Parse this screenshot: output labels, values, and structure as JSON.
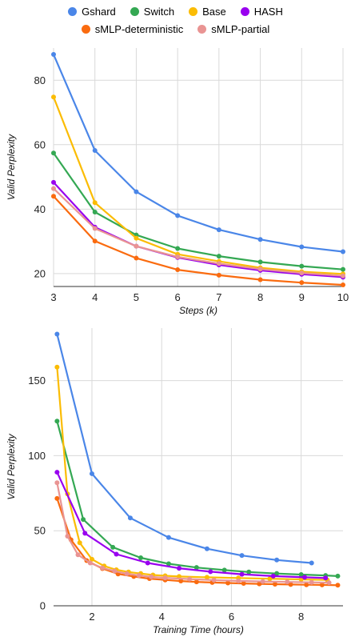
{
  "colors": {
    "Gshard": "#4a86e8",
    "Switch": "#34a853",
    "Base": "#fbbc04",
    "HASH": "#9900ef",
    "sMLP-deterministic": "#fa6b0f",
    "sMLP-partial": "#e99493"
  },
  "legend": {
    "row1": [
      "Gshard",
      "Switch",
      "Base",
      "HASH"
    ],
    "row2": [
      "sMLP-deterministic",
      "sMLP-partial"
    ]
  },
  "chart_data": [
    {
      "type": "line",
      "xlabel": "Steps (k)",
      "ylabel": "Valid Perplexity",
      "xlim": [
        3,
        10
      ],
      "ylim": [
        16,
        90
      ],
      "xticks": [
        3,
        4,
        5,
        6,
        7,
        8,
        9,
        10
      ],
      "yticks": [
        20,
        40,
        60,
        80
      ],
      "grid": true,
      "legend_position": "top",
      "series": [
        {
          "name": "Gshard",
          "x": [
            3,
            4,
            5,
            6,
            7,
            8,
            9,
            10
          ],
          "values": [
            88,
            58.2,
            45.4,
            38,
            33.6,
            30.6,
            28.3,
            26.8
          ]
        },
        {
          "name": "Switch",
          "x": [
            3,
            4,
            5,
            6,
            7,
            8,
            9,
            10
          ],
          "values": [
            57.4,
            39.1,
            32,
            27.8,
            25.4,
            23.6,
            22.3,
            21.3
          ]
        },
        {
          "name": "Base",
          "x": [
            3,
            4,
            5,
            6,
            7,
            8,
            9,
            10
          ],
          "values": [
            74.8,
            42,
            31,
            26,
            23.8,
            21.8,
            20.6,
            19.9
          ]
        },
        {
          "name": "HASH",
          "x": [
            3,
            4,
            5,
            6,
            7,
            8,
            9,
            10
          ],
          "values": [
            48.3,
            34.4,
            28.5,
            25,
            22.7,
            21,
            19.8,
            18.9
          ]
        },
        {
          "name": "sMLP-deterministic",
          "x": [
            3,
            4,
            5,
            6,
            7,
            8,
            9,
            10
          ],
          "values": [
            44,
            30.1,
            24.8,
            21.2,
            19.5,
            18.1,
            17.2,
            16.5
          ]
        },
        {
          "name": "sMLP-partial",
          "x": [
            3,
            4,
            5,
            6,
            7,
            8,
            9,
            10
          ],
          "values": [
            46.4,
            34,
            28.5,
            25.2,
            23.1,
            21.4,
            20.2,
            19.3
          ]
        }
      ]
    },
    {
      "type": "line",
      "xlabel": "Training Time (hours)",
      "ylabel": "Valid Perplexity",
      "xlim": [
        0.9,
        9.2
      ],
      "ylim": [
        0,
        185
      ],
      "xticks": [
        2,
        4,
        6,
        8
      ],
      "yticks": [
        0,
        50,
        100,
        150
      ],
      "grid": true,
      "legend_position": "top",
      "series": [
        {
          "name": "Gshard",
          "x": [
            1.0,
            2.0,
            3.1,
            4.2,
            5.3,
            6.3,
            7.3,
            8.3
          ],
          "values": [
            181,
            88,
            58.5,
            45.5,
            38,
            33.5,
            30.5,
            28.5
          ]
        },
        {
          "name": "Switch",
          "x": [
            1.0,
            1.75,
            2.6,
            3.4,
            4.2,
            5.0,
            5.8,
            6.5,
            7.3,
            8.0,
            8.7,
            9.05
          ],
          "values": [
            123,
            57.5,
            39,
            32,
            28,
            25.5,
            23.8,
            22.5,
            21.5,
            20.8,
            20.2,
            19.8
          ]
        },
        {
          "name": "Base",
          "x": [
            1.0,
            1.3,
            1.65,
            2.0,
            2.35,
            2.7,
            3.05,
            3.4,
            3.75,
            4.1,
            4.5,
            5.3,
            6.2,
            7.1,
            8.0,
            8.75
          ],
          "values": [
            159,
            74.5,
            42,
            31,
            26.5,
            24,
            22.5,
            21.5,
            20.5,
            20,
            19.5,
            19,
            18.5,
            18,
            17.6,
            17.2
          ]
        },
        {
          "name": "HASH",
          "x": [
            1.0,
            1.8,
            2.7,
            3.6,
            4.5,
            5.4,
            6.3,
            7.2,
            8.1,
            8.7
          ],
          "values": [
            89,
            48.3,
            34.4,
            28.5,
            25,
            22.7,
            21,
            19.8,
            19,
            18.5
          ]
        },
        {
          "name": "sMLP-deterministic",
          "x": [
            1.0,
            1.4,
            1.85,
            2.3,
            2.75,
            3.2,
            3.65,
            4.1,
            4.55,
            5.0,
            5.45,
            5.9,
            6.35,
            6.8,
            7.25,
            7.7,
            8.15,
            8.6,
            9.05
          ],
          "values": [
            71.5,
            44,
            30.1,
            24.8,
            21.2,
            19.5,
            18.1,
            17.2,
            16.5,
            15.9,
            15.5,
            15.2,
            14.9,
            14.6,
            14.4,
            14.2,
            14,
            13.9,
            13.7
          ]
        },
        {
          "name": "sMLP-partial",
          "x": [
            1.0,
            1.3,
            1.6,
            1.95,
            2.3,
            2.65,
            3.0,
            3.35,
            3.7,
            4.1,
            4.8,
            5.5,
            6.2,
            6.9,
            7.6,
            8.3,
            8.8
          ],
          "values": [
            82,
            46.4,
            34,
            28.5,
            25.2,
            23.1,
            21.4,
            20.2,
            19.3,
            18.6,
            17.8,
            17.1,
            16.6,
            16.2,
            15.9,
            15.6,
            15.4
          ]
        }
      ]
    }
  ]
}
